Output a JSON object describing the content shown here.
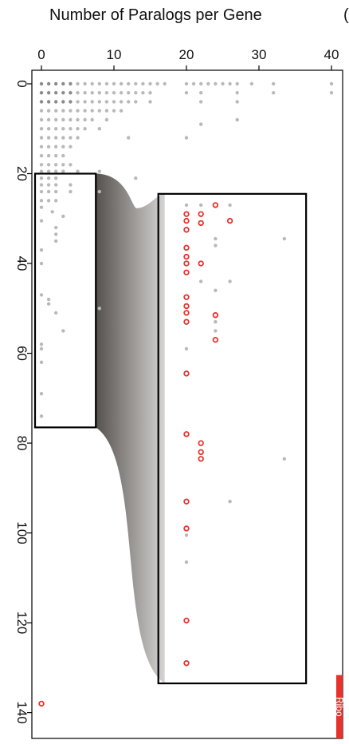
{
  "title": "Number of Paralogs per Gene",
  "second_title_fragment": "(",
  "ribo_label": "Ribo",
  "colors": {
    "grey_point": "#b9b9b9",
    "red_point": "#e8322e",
    "frame": "#000000",
    "ribo_fill": "#e8322e"
  },
  "chart_data": {
    "type": "scatter",
    "orientation": "x axis on top, y axis on left (reversed, rotated tick labels)",
    "title": "Number of Paralogs per Gene",
    "xlabel": "",
    "ylabel": "",
    "xlim": [
      0,
      40
    ],
    "ylim": [
      0,
      140
    ],
    "x_ticks": [
      "0",
      "10",
      "20",
      "30",
      "40"
    ],
    "y_ticks": [
      "0",
      "20",
      "40",
      "60",
      "80",
      "100",
      "120",
      "140"
    ],
    "grid": false,
    "zoom_regions": [
      {
        "name": "source",
        "x": [
          0,
          7.5
        ],
        "y": [
          20,
          76.5
        ]
      },
      {
        "name": "magnified",
        "x": [
          17,
          36.5
        ],
        "y": [
          24.5,
          133.5
        ]
      }
    ],
    "annotations": [
      {
        "text": "Ribo",
        "x_range": [
          40,
          43
        ],
        "y_range": [
          132,
          142
        ],
        "color": "#e8322e"
      }
    ],
    "series": [
      {
        "color": "#b9b9b9",
        "points": [
          [
            0,
            0
          ],
          [
            1,
            0
          ],
          [
            2,
            0
          ],
          [
            3,
            0
          ],
          [
            4,
            0
          ],
          [
            5,
            0
          ],
          [
            6,
            0
          ],
          [
            7,
            0
          ],
          [
            8,
            0
          ],
          [
            9,
            0
          ],
          [
            10,
            0
          ],
          [
            11,
            0
          ],
          [
            12,
            0
          ],
          [
            13,
            0
          ],
          [
            14,
            0
          ],
          [
            15,
            0
          ],
          [
            16,
            0
          ],
          [
            17,
            0
          ],
          [
            20,
            0
          ],
          [
            21,
            0
          ],
          [
            22,
            0
          ],
          [
            23,
            0
          ],
          [
            24,
            0
          ],
          [
            25,
            0
          ],
          [
            26,
            0
          ],
          [
            27,
            0
          ],
          [
            29,
            0
          ],
          [
            32,
            0
          ],
          [
            40,
            0
          ],
          [
            0,
            2
          ],
          [
            1,
            2
          ],
          [
            2,
            2
          ],
          [
            3,
            2
          ],
          [
            4,
            2
          ],
          [
            5,
            2
          ],
          [
            6,
            2
          ],
          [
            7,
            2
          ],
          [
            8,
            2
          ],
          [
            9,
            2
          ],
          [
            10,
            2
          ],
          [
            11,
            2
          ],
          [
            12,
            2
          ],
          [
            13,
            2
          ],
          [
            14,
            2
          ],
          [
            15,
            2
          ],
          [
            20,
            2
          ],
          [
            22,
            2
          ],
          [
            27,
            2
          ],
          [
            32,
            2
          ],
          [
            40,
            2
          ],
          [
            0,
            4
          ],
          [
            1,
            4
          ],
          [
            2,
            4
          ],
          [
            3,
            4
          ],
          [
            4,
            4
          ],
          [
            5,
            4
          ],
          [
            6,
            4
          ],
          [
            7,
            4
          ],
          [
            8,
            4
          ],
          [
            9,
            4
          ],
          [
            10,
            4
          ],
          [
            11,
            4
          ],
          [
            12,
            4
          ],
          [
            13,
            4
          ],
          [
            15,
            4
          ],
          [
            22,
            4
          ],
          [
            27,
            4
          ],
          [
            0,
            6
          ],
          [
            1,
            6
          ],
          [
            2,
            6
          ],
          [
            3,
            6
          ],
          [
            4,
            6
          ],
          [
            5,
            6
          ],
          [
            6,
            6
          ],
          [
            7,
            6
          ],
          [
            8,
            6
          ],
          [
            9,
            6
          ],
          [
            10,
            6
          ],
          [
            11,
            6
          ],
          [
            0,
            8
          ],
          [
            1,
            8
          ],
          [
            2,
            8
          ],
          [
            3,
            8
          ],
          [
            4,
            8
          ],
          [
            5,
            8
          ],
          [
            6,
            8
          ],
          [
            7,
            8
          ],
          [
            9,
            8
          ],
          [
            27,
            8
          ],
          [
            0,
            10
          ],
          [
            1,
            10
          ],
          [
            2,
            10
          ],
          [
            3,
            10
          ],
          [
            4,
            10
          ],
          [
            5,
            10
          ],
          [
            6,
            10
          ],
          [
            8,
            10
          ],
          [
            22,
            9
          ],
          [
            0,
            12
          ],
          [
            1,
            12
          ],
          [
            2,
            12
          ],
          [
            3,
            12
          ],
          [
            4,
            12
          ],
          [
            5,
            12
          ],
          [
            12,
            12
          ],
          [
            20,
            12
          ],
          [
            0,
            14
          ],
          [
            1,
            14
          ],
          [
            2,
            14
          ],
          [
            3,
            14
          ],
          [
            4,
            14
          ],
          [
            0,
            16
          ],
          [
            1,
            16
          ],
          [
            2,
            16
          ],
          [
            3,
            16
          ],
          [
            0,
            18
          ],
          [
            1,
            18
          ],
          [
            2,
            18
          ],
          [
            3,
            18
          ],
          [
            4,
            18
          ],
          [
            0,
            19.5
          ],
          [
            1,
            19.5
          ],
          [
            2,
            19.5
          ],
          [
            3,
            19.5
          ],
          [
            5,
            19.5
          ],
          [
            8,
            19.5
          ],
          [
            0,
            21
          ],
          [
            1,
            21
          ],
          [
            2,
            21
          ],
          [
            13,
            21
          ],
          [
            0,
            22.5
          ],
          [
            1,
            22.5
          ],
          [
            2,
            22.5
          ],
          [
            4,
            22.5
          ],
          [
            0,
            24
          ],
          [
            1,
            24
          ],
          [
            2,
            24
          ],
          [
            4,
            24
          ],
          [
            8,
            24
          ],
          [
            0,
            26
          ],
          [
            1,
            26
          ],
          [
            2,
            26
          ],
          [
            0,
            27.5
          ],
          [
            1.5,
            28.5
          ],
          [
            3,
            29.5
          ],
          [
            0,
            30.5
          ],
          [
            2,
            32
          ],
          [
            2,
            33.5
          ],
          [
            2,
            35
          ],
          [
            0,
            37
          ],
          [
            0,
            40
          ],
          [
            0,
            47
          ],
          [
            1,
            48
          ],
          [
            1,
            49
          ],
          [
            8,
            50
          ],
          [
            2,
            51
          ],
          [
            3,
            55
          ],
          [
            0,
            58
          ],
          [
            0,
            59
          ],
          [
            0,
            62
          ],
          [
            0,
            69
          ],
          [
            0,
            74
          ],
          [
            20,
            27
          ],
          [
            22,
            27
          ],
          [
            26,
            27
          ],
          [
            24,
            34.5
          ],
          [
            33.5,
            34.5
          ],
          [
            24,
            36
          ],
          [
            22,
            44
          ],
          [
            26,
            44
          ],
          [
            24,
            46
          ],
          [
            24,
            53
          ],
          [
            24,
            55
          ],
          [
            20,
            59
          ],
          [
            22,
            82
          ],
          [
            33.5,
            83.5
          ],
          [
            26,
            93
          ],
          [
            20,
            100.5
          ],
          [
            20,
            106.5
          ]
        ]
      },
      {
        "color": "#e8322e",
        "points": [
          [
            24,
            27
          ],
          [
            20,
            29
          ],
          [
            22,
            29
          ],
          [
            20,
            30.5
          ],
          [
            22,
            31
          ],
          [
            26,
            30.5
          ],
          [
            20,
            32.5
          ],
          [
            20,
            36.5
          ],
          [
            20,
            38.5
          ],
          [
            20,
            40
          ],
          [
            22,
            40
          ],
          [
            20,
            42
          ],
          [
            20,
            47.5
          ],
          [
            20,
            49.5
          ],
          [
            20,
            51
          ],
          [
            20,
            53
          ],
          [
            24,
            51.5
          ],
          [
            24,
            57
          ],
          [
            20,
            64.5
          ],
          [
            20,
            78
          ],
          [
            22,
            80
          ],
          [
            22,
            82
          ],
          [
            22,
            83.5
          ],
          [
            20,
            93
          ],
          [
            20,
            99
          ],
          [
            20,
            119.5
          ],
          [
            20,
            129
          ],
          [
            0,
            138
          ]
        ]
      }
    ]
  }
}
